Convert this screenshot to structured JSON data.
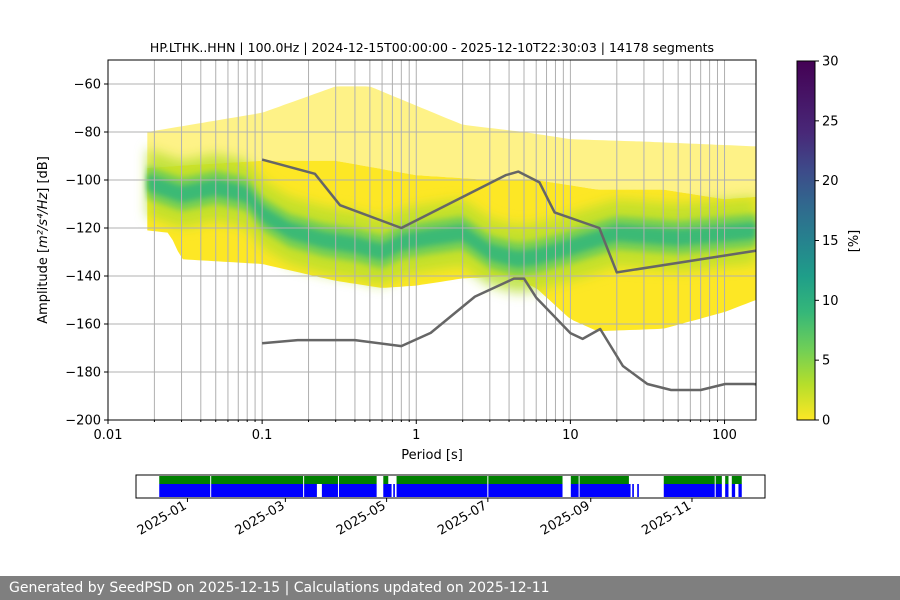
{
  "chart_data": [
    {
      "type": "heatmap",
      "title": "HP.LTHK..HHN | 100.0Hz | 2024-12-15T00:00:00 - 2025-12-10T22:30:03 | 14178 segments",
      "xlabel": "Period [s]",
      "ylabel_prefix": "Amplitude [",
      "ylabel_math": "m²/s⁴/Hz",
      "ylabel_suffix": "] [dB]",
      "xscale": "log",
      "xlim": [
        0.01,
        160
      ],
      "ylim": [
        -200,
        -50
      ],
      "x_ticks": [
        {
          "value": 0.01,
          "label": "0.01"
        },
        {
          "value": 0.1,
          "label": "0.1"
        },
        {
          "value": 1,
          "label": "1"
        },
        {
          "value": 10,
          "label": "10"
        },
        {
          "value": 100,
          "label": "100"
        }
      ],
      "y_ticks": [
        {
          "value": -60,
          "label": "−60"
        },
        {
          "value": -80,
          "label": "−80"
        },
        {
          "value": -100,
          "label": "−100"
        },
        {
          "value": -120,
          "label": "−120"
        },
        {
          "value": -140,
          "label": "−140"
        },
        {
          "value": -160,
          "label": "−160"
        },
        {
          "value": -180,
          "label": "−180"
        },
        {
          "value": -200,
          "label": "−200"
        }
      ],
      "grid": true,
      "colormap": "viridis_r",
      "colorbar": {
        "label": "[%]",
        "range": [
          0,
          30
        ],
        "ticks": [
          {
            "value": 0,
            "label": "0"
          },
          {
            "value": 5,
            "label": "5"
          },
          {
            "value": 10,
            "label": "10"
          },
          {
            "value": 15,
            "label": "15"
          },
          {
            "value": 20,
            "label": "20"
          },
          {
            "value": 25,
            "label": "25"
          },
          {
            "value": 30,
            "label": "30"
          }
        ]
      },
      "psd_density": {
        "period_start": 0.018,
        "period_end": 160,
        "yellow_background": "#fde725",
        "mode_curve": [
          [
            0.018,
            -101
          ],
          [
            0.03,
            -106
          ],
          [
            0.05,
            -103
          ],
          [
            0.08,
            -106
          ],
          [
            0.1,
            -114
          ],
          [
            0.15,
            -121
          ],
          [
            0.25,
            -125
          ],
          [
            0.4,
            -127
          ],
          [
            0.6,
            -130
          ],
          [
            0.8,
            -126
          ],
          [
            1.2,
            -124
          ],
          [
            2,
            -122
          ],
          [
            3,
            -130
          ],
          [
            4.5,
            -133
          ],
          [
            6,
            -132
          ],
          [
            10,
            -128
          ],
          [
            20,
            -122
          ],
          [
            50,
            -124
          ],
          [
            160,
            -121
          ]
        ],
        "bright_band_extent": [
          0.018,
          5
        ],
        "main_upper": [
          [
            0.018,
            -95
          ],
          [
            0.03,
            -94
          ],
          [
            0.1,
            -92
          ],
          [
            0.3,
            -92
          ],
          [
            1,
            -98
          ],
          [
            3,
            -100
          ],
          [
            6,
            -100
          ],
          [
            15,
            -104
          ],
          [
            40,
            -104
          ],
          [
            100,
            -108
          ],
          [
            160,
            -107
          ]
        ],
        "main_lower": [
          [
            0.018,
            -121
          ],
          [
            0.025,
            -122
          ],
          [
            0.03,
            -133
          ],
          [
            0.1,
            -135
          ],
          [
            0.3,
            -142
          ],
          [
            0.6,
            -145
          ],
          [
            1,
            -144
          ],
          [
            2,
            -141
          ],
          [
            4,
            -140
          ],
          [
            6,
            -145
          ],
          [
            10,
            -158
          ],
          [
            15,
            -163
          ],
          [
            40,
            -162
          ],
          [
            100,
            -155
          ],
          [
            160,
            -150
          ]
        ],
        "upper_outliers": [
          [
            0.018,
            -80
          ],
          [
            0.1,
            -72
          ],
          [
            0.3,
            -61
          ],
          [
            0.5,
            -61
          ],
          [
            1,
            -69
          ],
          [
            2,
            -77
          ],
          [
            5,
            -80
          ],
          [
            10,
            -83
          ],
          [
            30,
            -84
          ],
          [
            160,
            -86
          ]
        ]
      },
      "series": [
        {
          "style": "nlnm_nhnm",
          "role": "high_noise_model",
          "color": "#666666",
          "points": [
            [
              0.1,
              -91.5
            ],
            [
              0.22,
              -97.4
            ],
            [
              0.32,
              -110.5
            ],
            [
              0.8,
              -120
            ],
            [
              3.8,
              -98
            ],
            [
              4.6,
              -96.5
            ],
            [
              6.3,
              -101
            ],
            [
              7.9,
              -113.5
            ],
            [
              15.4,
              -120
            ],
            [
              20,
              -138.5
            ],
            [
              354,
              -126
            ]
          ]
        },
        {
          "style": "nlnm_nhnm",
          "role": "low_noise_model",
          "color": "#666666",
          "points": [
            [
              0.1,
              -168
            ],
            [
              0.17,
              -166.7
            ],
            [
              0.4,
              -166.7
            ],
            [
              0.8,
              -169.2
            ],
            [
              1.24,
              -163.7
            ],
            [
              2.4,
              -148.6
            ],
            [
              4.3,
              -141.1
            ],
            [
              5,
              -141.1
            ],
            [
              6,
              -149
            ],
            [
              10,
              -163.8
            ],
            [
              12,
              -166.2
            ],
            [
              15.6,
              -162.1
            ],
            [
              21.9,
              -177.5
            ],
            [
              31.6,
              -185
            ],
            [
              45,
              -187.5
            ],
            [
              70,
              -187.5
            ],
            [
              101,
              -185
            ],
            [
              154,
              -185
            ],
            [
              328,
              -187.5
            ]
          ]
        }
      ]
    },
    {
      "type": "timeline",
      "xlim": [
        "2024-12-01",
        "2025-12-15"
      ],
      "x_ticks": [
        {
          "value": "2025-01-01",
          "label": "2025-01"
        },
        {
          "value": "2025-03-01",
          "label": "2025-03"
        },
        {
          "value": "2025-05-01",
          "label": "2025-05"
        },
        {
          "value": "2025-07-01",
          "label": "2025-07"
        },
        {
          "value": "2025-09-01",
          "label": "2025-09"
        },
        {
          "value": "2025-11-01",
          "label": "2025-11"
        }
      ],
      "available_color": "#0000ff",
      "used_color": "#008000",
      "available_intervals": [
        [
          "2024-12-15",
          "2025-03-20"
        ],
        [
          "2025-03-23",
          "2025-04-25"
        ],
        [
          "2025-04-29",
          "2025-05-04"
        ],
        [
          "2025-05-05",
          "2025-05-06"
        ],
        [
          "2025-05-07",
          "2025-08-15"
        ],
        [
          "2025-08-20",
          "2025-09-25"
        ],
        [
          "2025-09-26",
          "2025-09-27"
        ],
        [
          "2025-09-29",
          "2025-09-30"
        ],
        [
          "2025-10-15",
          "2025-11-19"
        ],
        [
          "2025-11-21",
          "2025-11-23"
        ],
        [
          "2025-11-25",
          "2025-11-27"
        ],
        [
          "2025-11-29",
          "2025-12-01"
        ]
      ],
      "used_intervals": [
        [
          "2024-12-15",
          "2025-04-25"
        ],
        [
          "2025-04-29",
          "2025-05-02"
        ],
        [
          "2025-05-07",
          "2025-08-15"
        ],
        [
          "2025-08-20",
          "2025-09-24"
        ],
        [
          "2025-10-15",
          "2025-11-19"
        ],
        [
          "2025-11-21",
          "2025-11-23"
        ],
        [
          "2025-11-25",
          "2025-12-01"
        ]
      ],
      "gaps": [
        "2025-01-15",
        "2025-03-12",
        "2025-04-02",
        "2025-07-01",
        "2025-08-25",
        "2025-11-15"
      ]
    }
  ],
  "footer": {
    "text": "Generated by SeedPSD on 2025-12-15 | Calculations updated on 2025-12-11"
  }
}
